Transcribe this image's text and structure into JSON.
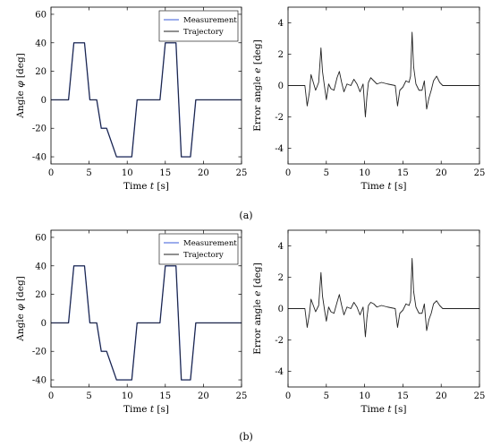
{
  "captions": [
    "(a)",
    "(b)"
  ],
  "chart_data": [
    {
      "panel": "a",
      "position": "left",
      "type": "line",
      "xlabel": "Time t [s]",
      "ylabel": "Angle φ [deg]",
      "xlim": [
        0,
        25
      ],
      "ylim": [
        -45,
        65
      ],
      "xticks": [
        0,
        5,
        10,
        15,
        20,
        25
      ],
      "yticks": [
        -40,
        -20,
        0,
        20,
        40,
        60
      ],
      "grid": false,
      "legend": "top-right",
      "series": [
        {
          "name": "Measurement",
          "color": "#3a5bd9",
          "x": [
            0,
            2.3,
            3,
            4.4,
            5.1,
            6.0,
            6.6,
            7.3,
            8.6,
            9.3,
            10.6,
            11.3,
            14.3,
            15.0,
            16.4,
            17.1,
            18.3,
            19.0,
            25
          ],
          "y": [
            0,
            0,
            40,
            40,
            0,
            0,
            -20,
            -20,
            -40,
            -40,
            -40,
            0,
            0,
            40,
            40,
            -40,
            -40,
            0,
            0
          ]
        },
        {
          "name": "Trajectory",
          "color": "#222222",
          "x": [
            0,
            2.3,
            3,
            4.4,
            5.1,
            6.0,
            6.6,
            7.3,
            8.6,
            9.3,
            10.6,
            11.3,
            14.3,
            15.0,
            16.4,
            17.1,
            18.3,
            19.0,
            25
          ],
          "y": [
            0,
            0,
            40,
            40,
            0,
            0,
            -20,
            -20,
            -40,
            -40,
            -40,
            0,
            0,
            40,
            40,
            -40,
            -40,
            0,
            0
          ]
        }
      ]
    },
    {
      "panel": "a",
      "position": "right",
      "type": "line",
      "xlabel": "Time t [s]",
      "ylabel": "Error angle e [deg]",
      "xlim": [
        0,
        25
      ],
      "ylim": [
        -5,
        5
      ],
      "xticks": [
        0,
        5,
        10,
        15,
        20,
        25
      ],
      "yticks": [
        -4,
        -2,
        0,
        2,
        4
      ],
      "grid": false,
      "series": [
        {
          "color": "#222222",
          "x": [
            0,
            2.2,
            2.5,
            2.8,
            3.0,
            3.3,
            3.6,
            4.0,
            4.3,
            4.5,
            4.8,
            5.0,
            5.3,
            5.6,
            6.0,
            6.4,
            6.7,
            7.0,
            7.3,
            7.7,
            8.2,
            8.6,
            9.0,
            9.4,
            9.8,
            10.1,
            10.3,
            10.5,
            10.8,
            11.2,
            11.6,
            12.2,
            13.0,
            14.0,
            14.3,
            14.6,
            15.0,
            15.4,
            15.8,
            16.0,
            16.2,
            16.4,
            16.7,
            17.1,
            17.5,
            17.8,
            18.1,
            18.4,
            18.7,
            19.0,
            19.4,
            19.8,
            20.2,
            25
          ],
          "y": [
            0,
            0,
            -1.3,
            -0.4,
            0.7,
            0.2,
            -0.3,
            0.2,
            2.4,
            0.9,
            -0.2,
            -0.9,
            0.1,
            -0.2,
            -0.3,
            0.5,
            0.9,
            0.2,
            -0.4,
            0.1,
            0.0,
            0.4,
            0.1,
            -0.4,
            0.1,
            -2.0,
            -0.7,
            0.2,
            0.5,
            0.3,
            0.1,
            0.2,
            0.1,
            0.0,
            -1.3,
            -0.3,
            -0.1,
            0.3,
            0.2,
            0.6,
            3.4,
            1.2,
            0.1,
            -0.3,
            -0.3,
            0.3,
            -1.5,
            -0.8,
            -0.3,
            0.3,
            0.6,
            0.2,
            0.0,
            0
          ]
        }
      ]
    },
    {
      "panel": "b",
      "position": "left",
      "type": "line",
      "xlabel": "Time t [s]",
      "ylabel": "Angle φ [deg]",
      "xlim": [
        0,
        25
      ],
      "ylim": [
        -45,
        65
      ],
      "xticks": [
        0,
        5,
        10,
        15,
        20,
        25
      ],
      "yticks": [
        -40,
        -20,
        0,
        20,
        40,
        60
      ],
      "grid": false,
      "legend": "top-right",
      "series": [
        {
          "name": "Measurement",
          "color": "#3a5bd9",
          "x": [
            0,
            2.3,
            3,
            4.4,
            5.1,
            6.0,
            6.6,
            7.3,
            8.6,
            9.3,
            10.6,
            11.3,
            14.3,
            15.0,
            16.4,
            17.1,
            18.3,
            19.0,
            25
          ],
          "y": [
            0,
            0,
            40,
            40,
            0,
            0,
            -20,
            -20,
            -40,
            -40,
            -40,
            0,
            0,
            40,
            40,
            -40,
            -40,
            0,
            0
          ]
        },
        {
          "name": "Trajectory",
          "color": "#222222",
          "x": [
            0,
            2.3,
            3,
            4.4,
            5.1,
            6.0,
            6.6,
            7.3,
            8.6,
            9.3,
            10.6,
            11.3,
            14.3,
            15.0,
            16.4,
            17.1,
            18.3,
            19.0,
            25
          ],
          "y": [
            0,
            0,
            40,
            40,
            0,
            0,
            -20,
            -20,
            -40,
            -40,
            -40,
            0,
            0,
            40,
            40,
            -40,
            -40,
            0,
            0
          ]
        }
      ]
    },
    {
      "panel": "b",
      "position": "right",
      "type": "line",
      "xlabel": "Time t [s]",
      "ylabel": "Error angle e [deg]",
      "xlim": [
        0,
        25
      ],
      "ylim": [
        -5,
        5
      ],
      "xticks": [
        0,
        5,
        10,
        15,
        20,
        25
      ],
      "yticks": [
        -4,
        -2,
        0,
        2,
        4
      ],
      "grid": false,
      "series": [
        {
          "color": "#222222",
          "x": [
            0,
            2.2,
            2.5,
            2.8,
            3.0,
            3.3,
            3.6,
            4.0,
            4.3,
            4.5,
            4.8,
            5.0,
            5.3,
            5.6,
            6.0,
            6.4,
            6.7,
            7.0,
            7.3,
            7.7,
            8.2,
            8.6,
            9.0,
            9.4,
            9.8,
            10.1,
            10.3,
            10.5,
            10.8,
            11.2,
            11.6,
            12.2,
            13.0,
            14.0,
            14.3,
            14.6,
            15.0,
            15.4,
            15.8,
            16.0,
            16.2,
            16.4,
            16.7,
            17.1,
            17.5,
            17.8,
            18.1,
            18.4,
            18.7,
            19.0,
            19.4,
            19.8,
            20.2,
            25
          ],
          "y": [
            0,
            0,
            -1.2,
            -0.3,
            0.6,
            0.2,
            -0.2,
            0.2,
            2.3,
            0.8,
            -0.2,
            -0.8,
            0.1,
            -0.2,
            -0.3,
            0.4,
            0.9,
            0.2,
            -0.4,
            0.1,
            0.0,
            0.4,
            0.1,
            -0.4,
            0.1,
            -1.8,
            -0.6,
            0.2,
            0.4,
            0.3,
            0.1,
            0.2,
            0.1,
            0.0,
            -1.2,
            -0.3,
            -0.1,
            0.3,
            0.2,
            0.5,
            3.2,
            1.1,
            0.1,
            -0.3,
            -0.3,
            0.3,
            -1.4,
            -0.7,
            -0.3,
            0.3,
            0.5,
            0.2,
            0.0,
            0
          ]
        }
      ]
    }
  ]
}
